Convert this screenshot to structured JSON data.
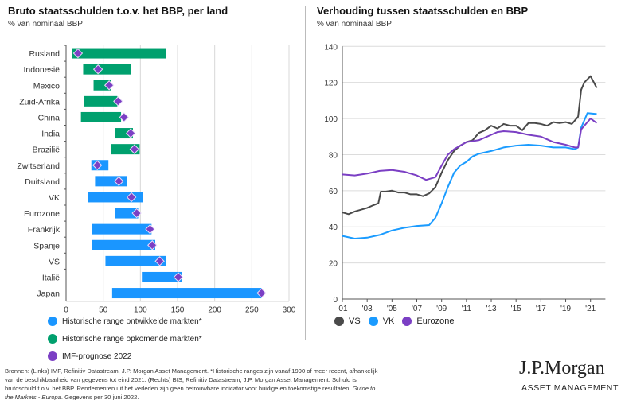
{
  "left": {
    "title": "Bruto staatsschulden t.o.v. het BBP, per land",
    "subtitle": "% van nominaal BBP",
    "legend": [
      {
        "label": "Historische range ontwikkelde markten*",
        "color": "#1a96ff"
      },
      {
        "label": "Historische range opkomende markten*",
        "color": "#00a06e"
      },
      {
        "label": "IMF-prognose 2022",
        "color": "#7b3fc4"
      }
    ]
  },
  "right": {
    "title": "Verhouding tussen staatsschulden en BBP",
    "subtitle": "% van nominaal BBP"
  },
  "chart_data": [
    {
      "type": "bar",
      "subtype": "horizontal-range-with-marker",
      "categories": [
        "Rusland",
        "Indonesië",
        "Mexico",
        "Zuid-Afrika",
        "China",
        "India",
        "Brazilië",
        "Zwitserland",
        "Duitsland",
        "VK",
        "Eurozone",
        "Frankrijk",
        "Spanje",
        "VS",
        "Italië",
        "Japan"
      ],
      "group": [
        "opkomend",
        "opkomend",
        "opkomend",
        "opkomend",
        "opkomend",
        "opkomend",
        "opkomend",
        "ontwikkeld",
        "ontwikkeld",
        "ontwikkeld",
        "ontwikkeld",
        "ontwikkeld",
        "ontwikkeld",
        "ontwikkeld",
        "ontwikkeld",
        "ontwikkeld"
      ],
      "range_min": [
        8,
        23,
        37,
        24,
        20,
        66,
        60,
        34,
        39,
        29,
        66,
        35,
        35,
        53,
        102,
        62
      ],
      "range_max": [
        135,
        87,
        60,
        69,
        74,
        90,
        99,
        57,
        82,
        103,
        97,
        115,
        120,
        135,
        156,
        263
      ],
      "imf_2022": [
        16,
        43,
        58,
        70,
        78,
        87,
        92,
        42,
        71,
        88,
        95,
        113,
        116,
        126,
        151,
        263
      ],
      "xlim": [
        0,
        300
      ],
      "xticks": [
        "0",
        "50",
        "100",
        "150",
        "200",
        "250",
        "300"
      ],
      "grid": "vertical",
      "colors": {
        "ontwikkeld": "#1a96ff",
        "opkomend": "#00a06e",
        "marker": "#7b3fc4"
      }
    },
    {
      "type": "line",
      "ylim": [
        0,
        140
      ],
      "yticks": [
        "0",
        "20",
        "40",
        "60",
        "80",
        "100",
        "120",
        "140"
      ],
      "xticks": [
        "'01",
        "'03",
        "'05",
        "'07",
        "'09",
        "'11",
        "'13",
        "'15",
        "'17",
        "'19",
        "'21"
      ],
      "xlim": [
        2001,
        2022.2
      ],
      "grid": "horizontal",
      "legend_position": "bottom-left",
      "series": [
        {
          "name": "VS",
          "color": "#4a4a4a",
          "points": [
            [
              2001,
              48
            ],
            [
              2001.5,
              47
            ],
            [
              2002,
              48.5
            ],
            [
              2002.5,
              49.5
            ],
            [
              2003,
              50.5
            ],
            [
              2003.5,
              52
            ],
            [
              2003.9,
              53
            ],
            [
              2004.1,
              59.5
            ],
            [
              2004.5,
              59.5
            ],
            [
              2005,
              60
            ],
            [
              2005.5,
              59
            ],
            [
              2006,
              59
            ],
            [
              2006.5,
              58
            ],
            [
              2007,
              58
            ],
            [
              2007.5,
              57
            ],
            [
              2008,
              58.5
            ],
            [
              2008.5,
              62
            ],
            [
              2009,
              70
            ],
            [
              2009.5,
              77
            ],
            [
              2010,
              82
            ],
            [
              2010.5,
              85
            ],
            [
              2011,
              87
            ],
            [
              2011.5,
              88
            ],
            [
              2012,
              92
            ],
            [
              2012.5,
              93.5
            ],
            [
              2013,
              96
            ],
            [
              2013.5,
              94.5
            ],
            [
              2014,
              97
            ],
            [
              2014.5,
              96
            ],
            [
              2015,
              96
            ],
            [
              2015.5,
              93.5
            ],
            [
              2016,
              97.5
            ],
            [
              2016.5,
              97.5
            ],
            [
              2017,
              97
            ],
            [
              2017.5,
              96
            ],
            [
              2018,
              98
            ],
            [
              2018.5,
              97.5
            ],
            [
              2019,
              98
            ],
            [
              2019.5,
              97
            ],
            [
              2020,
              101
            ],
            [
              2020.25,
              116
            ],
            [
              2020.5,
              120
            ],
            [
              2021,
              123.5
            ],
            [
              2021.5,
              117
            ]
          ]
        },
        {
          "name": "VK",
          "color": "#1a9bff",
          "points": [
            [
              2001,
              35
            ],
            [
              2002,
              33.5
            ],
            [
              2003,
              34
            ],
            [
              2004,
              35.5
            ],
            [
              2005,
              38
            ],
            [
              2006,
              39.5
            ],
            [
              2007,
              40.5
            ],
            [
              2008,
              41
            ],
            [
              2008.5,
              45
            ],
            [
              2009,
              53
            ],
            [
              2009.5,
              62
            ],
            [
              2010,
              70
            ],
            [
              2010.5,
              74
            ],
            [
              2011,
              76
            ],
            [
              2011.5,
              79
            ],
            [
              2012,
              80.5
            ],
            [
              2013,
              82
            ],
            [
              2014,
              84
            ],
            [
              2015,
              85
            ],
            [
              2016,
              85.5
            ],
            [
              2017,
              85
            ],
            [
              2018,
              84
            ],
            [
              2019,
              84
            ],
            [
              2019.75,
              83
            ],
            [
              2020,
              84
            ],
            [
              2020.25,
              95
            ],
            [
              2020.75,
              103
            ],
            [
              2021.5,
              102.5
            ]
          ]
        },
        {
          "name": "Eurozone",
          "color": "#7b3fc4",
          "points": [
            [
              2001,
              69
            ],
            [
              2002,
              68.5
            ],
            [
              2003,
              69.5
            ],
            [
              2004,
              71
            ],
            [
              2005,
              71.5
            ],
            [
              2006,
              70.5
            ],
            [
              2007,
              68.5
            ],
            [
              2007.75,
              66
            ],
            [
              2008.5,
              67.5
            ],
            [
              2009,
              74
            ],
            [
              2009.5,
              80
            ],
            [
              2010,
              83
            ],
            [
              2011,
              87
            ],
            [
              2012,
              88
            ],
            [
              2013,
              91
            ],
            [
              2013.5,
              92.5
            ],
            [
              2014,
              93
            ],
            [
              2015,
              92.5
            ],
            [
              2016,
              91
            ],
            [
              2017,
              90
            ],
            [
              2018,
              87
            ],
            [
              2019,
              85.5
            ],
            [
              2019.75,
              84
            ],
            [
              2020,
              84
            ],
            [
              2020.25,
              94
            ],
            [
              2020.75,
              98
            ],
            [
              2021,
              100
            ],
            [
              2021.5,
              97.5
            ]
          ]
        }
      ]
    }
  ],
  "footer": {
    "text": "Bronnen: (Links) IMF, Refinitiv Datastream, J.P. Morgan Asset Management. *Historische ranges zijn vanaf 1990 of meer recent, afhankelijk van de beschikbaarheid van gegevens tot eind 2021. (Rechts) BIS, Refinitiv Datastream, J.P. Morgan Asset Management. Schuld is brutoschuld t.o.v. het BBP. Rendementen uit het verleden zijn geen betrouwbare indicator voor huidige en toekomstige resultaten.",
    "italic": "Guide to the Markets - Europa",
    "tail": ". Gegevens per 30 juni 2022."
  },
  "logo": {
    "name": "J.P.Morgan",
    "sub": "ASSET MANAGEMENT"
  }
}
